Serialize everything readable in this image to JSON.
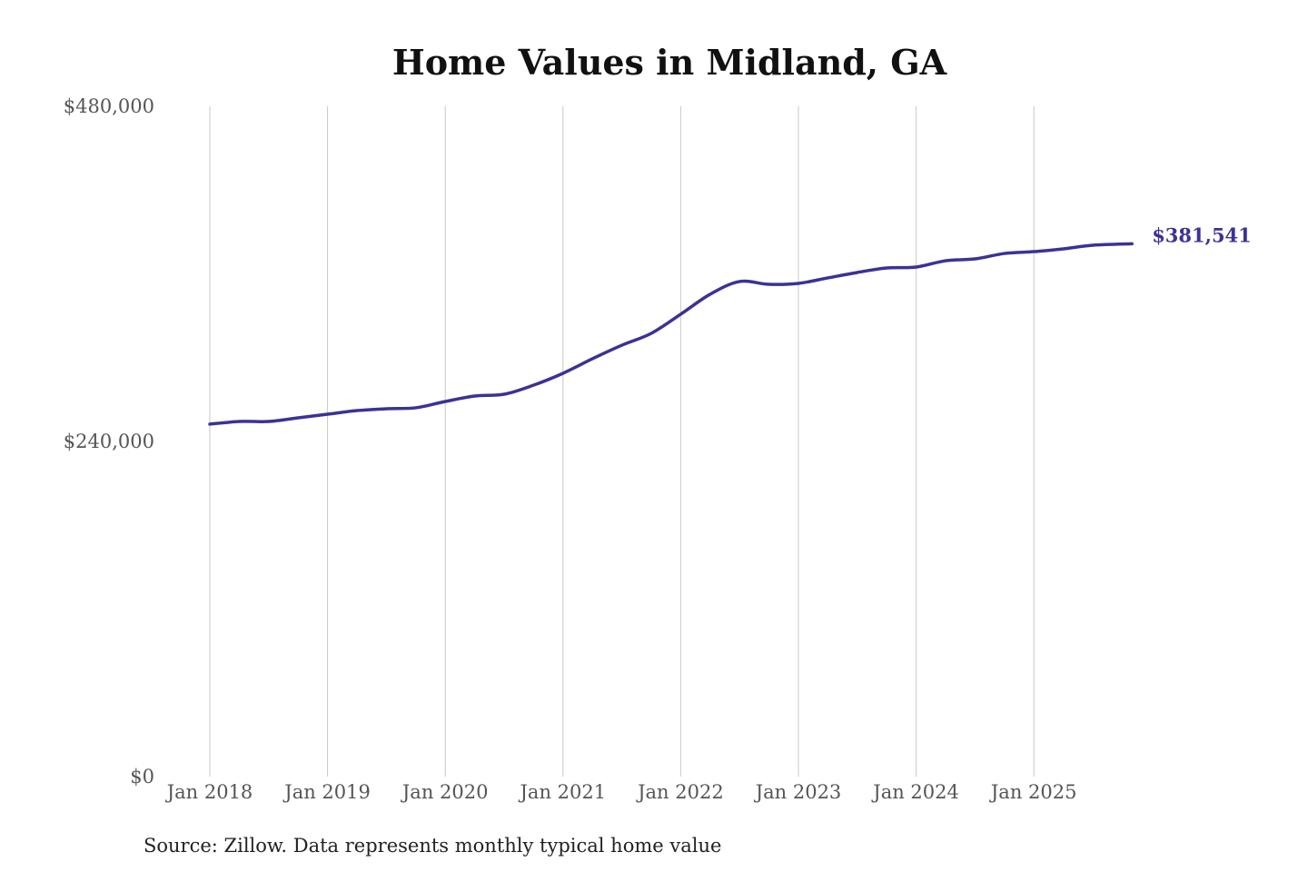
{
  "chart_data": {
    "type": "line",
    "title": "Home Values in Midland, GA",
    "source": "Source: Zillow. Data represents monthly typical home value",
    "ylim": [
      0,
      480000
    ],
    "y_ticks": [
      0,
      240000,
      480000
    ],
    "y_tick_labels": [
      "$0",
      "$240,000",
      "$480,000"
    ],
    "x_tick_labels": [
      "Jan 2018",
      "Jan 2019",
      "Jan 2020",
      "Jan 2021",
      "Jan 2022",
      "Jan 2023",
      "Jan 2024",
      "Jan 2025"
    ],
    "x_ticks": [
      "2018-01",
      "2019-01",
      "2020-01",
      "2021-01",
      "2022-01",
      "2023-01",
      "2024-01",
      "2025-01"
    ],
    "grid": "vertical",
    "line_color": "#3b3296",
    "end_label": "$381,541",
    "series": [
      {
        "x": [
          "2018-01",
          "2018-04",
          "2018-07",
          "2018-10",
          "2019-01",
          "2019-04",
          "2019-07",
          "2019-10",
          "2020-01",
          "2020-04",
          "2020-07",
          "2020-10",
          "2021-01",
          "2021-04",
          "2021-07",
          "2021-10",
          "2022-01",
          "2022-04",
          "2022-07",
          "2022-10",
          "2023-01",
          "2023-04",
          "2023-07",
          "2023-10",
          "2024-01",
          "2024-04",
          "2024-07",
          "2024-10",
          "2025-01",
          "2025-04",
          "2025-07",
          "2025-11"
        ],
        "values": [
          252400,
          254300,
          254300,
          256900,
          259500,
          262100,
          263400,
          264100,
          268600,
          272500,
          273800,
          280300,
          288800,
          299200,
          308900,
          317400,
          331100,
          345400,
          354500,
          352500,
          353200,
          357100,
          361000,
          364200,
          364900,
          369400,
          370700,
          374600,
          375900,
          377900,
          380500,
          381541
        ]
      }
    ]
  }
}
